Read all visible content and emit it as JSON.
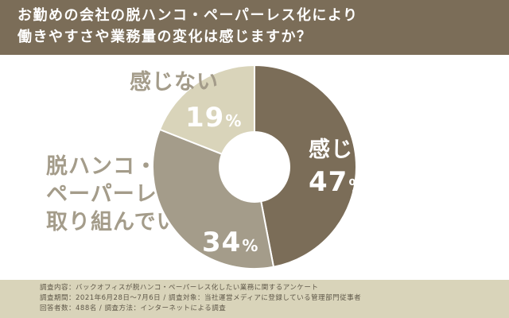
{
  "header": {
    "line1": "お勤めの会社の脱ハンコ・ペーパーレス化により",
    "line2": "働きやすさや業務量の変化は感じますか？"
  },
  "chart_data": {
    "type": "pie",
    "title": "お勤めの会社の脱ハンコ・ペーパーレス化により働きやすさや業務量の変化は感じますか？",
    "slices": [
      {
        "label": "感じる",
        "value": 47,
        "color": "#7b6d58"
      },
      {
        "label": "脱ハンコ・ペーパーレス化に取り組んでいない",
        "value": 34,
        "color": "#a49c8a"
      },
      {
        "label": "感じない",
        "value": 19,
        "color": "#d9d4ba"
      }
    ]
  },
  "labels": {
    "feel": {
      "name": "感じる",
      "pct": "47",
      "sign": "%"
    },
    "no_feel": {
      "name": "感じない",
      "pct": "19",
      "sign": "%"
    },
    "not_done": {
      "line1": "脱ハンコ・",
      "line2": "ペーパーレス化に",
      "line3": "取り組んでいない",
      "pct": "34",
      "sign": "%"
    }
  },
  "footer": {
    "line1": "調査内容：バックオフィスが脱ハンコ・ペーパーレス化したい業務に関するアンケート",
    "line2": "調査期間：2021年6月28日〜7月6日 / 調査対象：当社運営メディアに登録している管理部門従事者",
    "line3": "回答者数：488名 / 調査方法：インターネットによる調査"
  }
}
